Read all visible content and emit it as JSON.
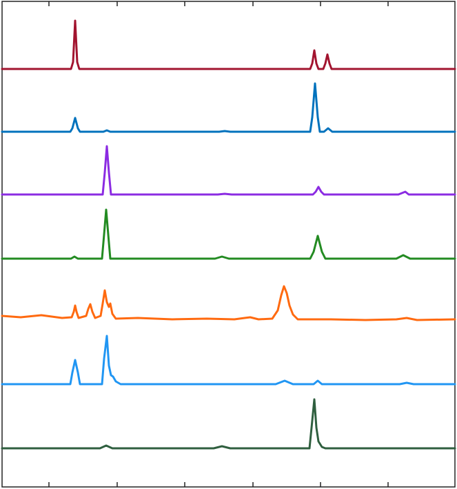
{
  "chart_data": {
    "type": "line",
    "xlim": [
      0,
      657
    ],
    "xticks": [
      68,
      167,
      265,
      364,
      462,
      560
    ],
    "ylim": [
      0,
      704
    ],
    "series": [
      {
        "color": "#a2142f",
        "x": [
          0,
          100,
          103,
          106,
          109,
          112,
          447,
          450,
          453,
          456,
          459,
          466,
          469,
          472,
          475,
          478,
          657
        ],
        "values": [
          606,
          606,
          616,
          676,
          616,
          606,
          606,
          614,
          633,
          614,
          606,
          606,
          614,
          627,
          614,
          606,
          606
        ]
      },
      {
        "color": "#0072bd",
        "x": [
          0,
          99,
          102,
          106,
          110,
          113,
          147,
          152,
          157,
          315,
          323,
          331,
          447,
          450,
          454,
          458,
          461,
          467,
          473,
          479,
          657
        ],
        "values": [
          515,
          515,
          520,
          535,
          520,
          515,
          515,
          517,
          515,
          515,
          516,
          515,
          515,
          536,
          585,
          536,
          515,
          515,
          520,
          515,
          515
        ]
      },
      {
        "color": "#8b2be2",
        "x": [
          0,
          146,
          149,
          152,
          155,
          158,
          313,
          323,
          333,
          451,
          455,
          459,
          463,
          467,
          575,
          580,
          585,
          590,
          657
        ],
        "values": [
          424,
          424,
          456,
          494,
          456,
          424,
          424,
          425,
          424,
          424,
          428,
          435,
          428,
          424,
          424,
          426,
          428,
          424,
          424
        ]
      },
      {
        "color": "#238b22",
        "x": [
          0,
          100,
          105,
          110,
          145,
          148,
          151,
          154,
          157,
          309,
          319,
          329,
          447,
          452,
          458,
          464,
          469,
          572,
          582,
          592,
          657
        ],
        "values": [
          331,
          331,
          334,
          331,
          331,
          366,
          402,
          366,
          331,
          331,
          334,
          331,
          331,
          341,
          364,
          341,
          331,
          331,
          336,
          331,
          331
        ]
      },
      {
        "color": "#ff6a10",
        "x": [
          0,
          27,
          57,
          87,
          101,
          104,
          106,
          108,
          111,
          122,
          125,
          128,
          131,
          135,
          143,
          146,
          149,
          152,
          155,
          157,
          160,
          165,
          197,
          247,
          297,
          337,
          352,
          360,
          372,
          392,
          400,
          405,
          409,
          413,
          417,
          422,
          429,
          477,
          527,
          572,
          587,
          602,
          657
        ],
        "values": [
          248,
          246,
          249,
          245,
          246,
          254,
          263,
          254,
          245,
          248,
          258,
          265,
          254,
          245,
          248,
          266,
          285,
          268,
          261,
          266,
          251,
          244,
          245,
          243,
          244,
          243,
          245,
          246,
          243,
          244,
          256,
          278,
          291,
          281,
          263,
          250,
          243,
          243,
          242,
          243,
          245,
          242,
          243
        ]
      },
      {
        "color": "#2196f3",
        "x": [
          0,
          99,
          102,
          106,
          110,
          113,
          145,
          148,
          152,
          155,
          158,
          161,
          165,
          172,
          397,
          410,
          422,
          452,
          458,
          464,
          577,
          587,
          597,
          657
        ],
        "values": [
          149,
          149,
          166,
          184,
          166,
          149,
          149,
          186,
          219,
          176,
          162,
          160,
          153,
          149,
          149,
          154,
          149,
          149,
          154,
          149,
          149,
          151,
          149,
          149
        ]
      },
      {
        "color": "#2f5f3f",
        "x": [
          0,
          142,
          151,
          160,
          307,
          319,
          331,
          446,
          449,
          453,
          456,
          459,
          464,
          469,
          657
        ],
        "values": [
          56,
          56,
          60,
          56,
          56,
          59,
          56,
          56,
          86,
          127,
          86,
          66,
          58,
          56,
          56
        ]
      }
    ]
  }
}
